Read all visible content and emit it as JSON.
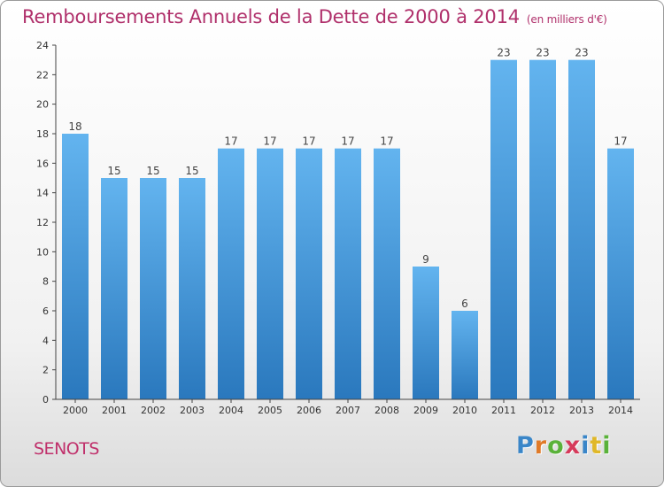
{
  "header": {
    "title": "Remboursements Annuels de la Dette de 2000 à 2014",
    "unit": "(en milliers d'€)"
  },
  "footer": {
    "commune": "SENOTS",
    "brand_letters": [
      "P",
      "r",
      "o",
      "x",
      "i",
      "t",
      "i"
    ],
    "brand_colors": [
      "#3a86c8",
      "#e07a28",
      "#5ab23a",
      "#d63a5a",
      "#3a86c8",
      "#e0b828",
      "#5ab23a"
    ]
  },
  "colors": {
    "bar_light": "#63b4ef",
    "bar_dark": "#2a78bd",
    "title": "#b0306b",
    "axis": "#444444"
  },
  "chart_data": {
    "type": "bar",
    "title": "Remboursements Annuels de la Dette de 2000 à 2014",
    "xlabel": "",
    "ylabel": "",
    "categories": [
      "2000",
      "2001",
      "2002",
      "2003",
      "2004",
      "2005",
      "2006",
      "2007",
      "2008",
      "2009",
      "2010",
      "2011",
      "2012",
      "2013",
      "2014"
    ],
    "values": [
      18,
      15,
      15,
      15,
      17,
      17,
      17,
      17,
      17,
      9,
      6,
      23,
      23,
      23,
      17
    ],
    "ylim": [
      0,
      24
    ],
    "yticks": [
      0,
      2,
      4,
      6,
      8,
      10,
      12,
      14,
      16,
      18,
      20,
      22,
      24
    ],
    "grid": false,
    "legend": "none"
  }
}
